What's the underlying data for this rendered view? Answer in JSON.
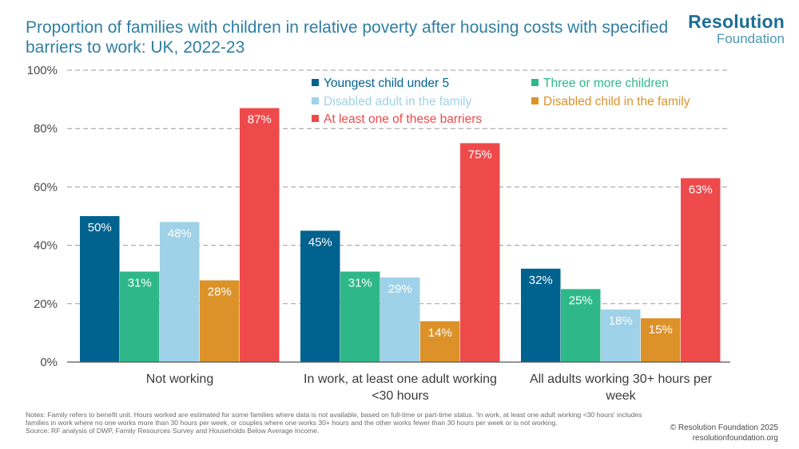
{
  "title": "Proportion of families with children in relative poverty after housing costs with specified barriers to work: UK, 2022-23",
  "logo": {
    "name": "Resolution",
    "sub": "Foundation"
  },
  "chart_data": {
    "type": "bar",
    "title": "Proportion of families with children in relative poverty after housing costs with specified barriers to work: UK, 2022-23",
    "categories": [
      "Not working",
      "In work, at least one adult working <30 hours",
      "All adults working 30+ hours per week"
    ],
    "category_lines": [
      [
        "Not working"
      ],
      [
        "In work, at least one adult working",
        "<30 hours"
      ],
      [
        "All adults working 30+ hours per",
        "week"
      ]
    ],
    "series": [
      {
        "name": "Youngest child under 5",
        "color": "#00628f",
        "values": [
          50,
          45,
          32
        ],
        "labels": [
          "50%",
          "45%",
          "32%"
        ]
      },
      {
        "name": "Three or more children",
        "color": "#2eb88a",
        "values": [
          31,
          31,
          25
        ],
        "labels": [
          "31%",
          "31%",
          "25%"
        ]
      },
      {
        "name": "Disabled adult in the family",
        "color": "#9fd2e8",
        "values": [
          48,
          29,
          18
        ],
        "labels": [
          "48%",
          "29%",
          "18%"
        ]
      },
      {
        "name": "Disabled child in the family",
        "color": "#dc9228",
        "values": [
          28,
          14,
          15
        ],
        "labels": [
          "28%",
          "14%",
          "15%"
        ]
      },
      {
        "name": "At least one of these barriers",
        "color": "#ee4a4b",
        "values": [
          87,
          75,
          63
        ],
        "labels": [
          "87%",
          "75%",
          "63%"
        ]
      }
    ],
    "ylim": [
      0,
      100
    ],
    "yticks": [
      0,
      20,
      40,
      60,
      80,
      100
    ],
    "ytick_labels": [
      "0%",
      "20%",
      "40%",
      "60%",
      "80%",
      "100%"
    ],
    "grid": true,
    "legend_placement": "top-right",
    "xlabel": "",
    "ylabel": ""
  },
  "notes": [
    "Notes: Family refers to benefit unit. Hours worked are estimated for some families where data is not available, based on full-time or part-time status. 'In work, at least one adult working <30 hours' includes families in work where no one works more than 30 hours per week, or couples where one works 30+ hours and the other works fewer than 30 hours per week or is not working.",
    "Source: RF analysis of DWP, Family Resources Survey and Households Below Average Income."
  ],
  "copyright": [
    "© Resolution Foundation 2025",
    "resolutionfoundation.org"
  ]
}
